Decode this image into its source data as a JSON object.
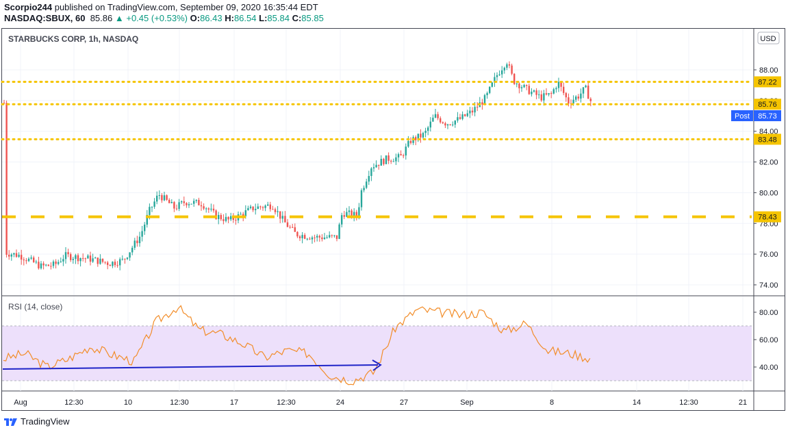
{
  "header": {
    "publisher": "Scorpio244",
    "published_text": "published on TradingView.com, September 09, 2020 16:35:44 EDT",
    "symbol": "NASDAQ:SBUX, 60",
    "last": "85.86",
    "change": "▲ +0.45 (+0.53%)",
    "o_label": "O:",
    "o": "86.43",
    "h_label": "H:",
    "h": "86.54",
    "l_label": "L:",
    "l": "85.84",
    "c_label": "C:",
    "c": "85.85"
  },
  "price_pane": {
    "title": "STARBUCKS CORP, 1h, NASDAQ",
    "currency": "USD",
    "y_ticks": [
      "88.00",
      "86.00",
      "84.00",
      "82.00",
      "80.00",
      "78.00",
      "76.00",
      "74.00"
    ],
    "levels": [
      {
        "value": 87.22,
        "label": "87.22",
        "style": "dotted",
        "color": "#f5c400"
      },
      {
        "value": 85.76,
        "label": "85.76",
        "style": "dotted",
        "color": "#f5c400"
      },
      {
        "value": 83.48,
        "label": "83.48",
        "style": "dotted",
        "color": "#f5c400"
      },
      {
        "value": 78.43,
        "label": "78.43",
        "style": "dashed",
        "color": "#f5c400"
      }
    ],
    "post": {
      "label": "Post",
      "value": "85.73",
      "color": "#2962ff"
    }
  },
  "rsi_pane": {
    "title": "RSI (14, close)",
    "y_ticks": [
      "80.00",
      "60.00",
      "40.00"
    ],
    "band": [
      30,
      70
    ],
    "band_color": "#ede0fb",
    "line_color": "#f28c28",
    "trend_color": "#1e24c8"
  },
  "x_axis": {
    "ticks": [
      "Aug",
      "12:30",
      "10",
      "12:30",
      "17",
      "12:30",
      "24",
      "27",
      "Sep",
      "8",
      "14",
      "12:30",
      "21"
    ]
  },
  "footer": {
    "brand": "TradingView"
  },
  "chart_data": [
    {
      "type": "candlestick",
      "title": "STARBUCKS CORP, 1h, NASDAQ",
      "ylabel": "USD",
      "ylim": [
        73.5,
        90.0
      ],
      "x": [
        "Aug 3",
        "Aug 4",
        "Aug 5",
        "Aug 6",
        "Aug 7",
        "Aug 10",
        "Aug 11",
        "Aug 12",
        "Aug 13",
        "Aug 14",
        "Aug 17",
        "Aug 18",
        "Aug 19",
        "Aug 20",
        "Aug 21",
        "Aug 24",
        "Aug 25",
        "Aug 26",
        "Aug 27",
        "Aug 28",
        "Aug 31",
        "Sep 1",
        "Sep 2",
        "Sep 3",
        "Sep 4",
        "Sep 8",
        "Sep 9"
      ],
      "close_approx": [
        76.1,
        75.4,
        75.9,
        75.6,
        75.5,
        77.5,
        79.6,
        79.2,
        79.4,
        78.8,
        78.3,
        78.9,
        79.0,
        77.4,
        77.0,
        78.4,
        80.3,
        82.4,
        83.0,
        84.3,
        84.5,
        85.9,
        86.9,
        88.6,
        86.3,
        85.9,
        85.85
      ],
      "levels": [
        87.22,
        85.76,
        83.48,
        78.43
      ],
      "last": 85.86,
      "post": 85.73
    },
    {
      "type": "line",
      "title": "RSI (14, close)",
      "ylim": [
        23,
        88
      ],
      "band": [
        30,
        70
      ],
      "values_approx": [
        46,
        50,
        40,
        46,
        55,
        49,
        44,
        73,
        84,
        67,
        64,
        57,
        47,
        52,
        50,
        34,
        30,
        36,
        69,
        82,
        80,
        78,
        80,
        66,
        72,
        52,
        50,
        46
      ]
    }
  ]
}
